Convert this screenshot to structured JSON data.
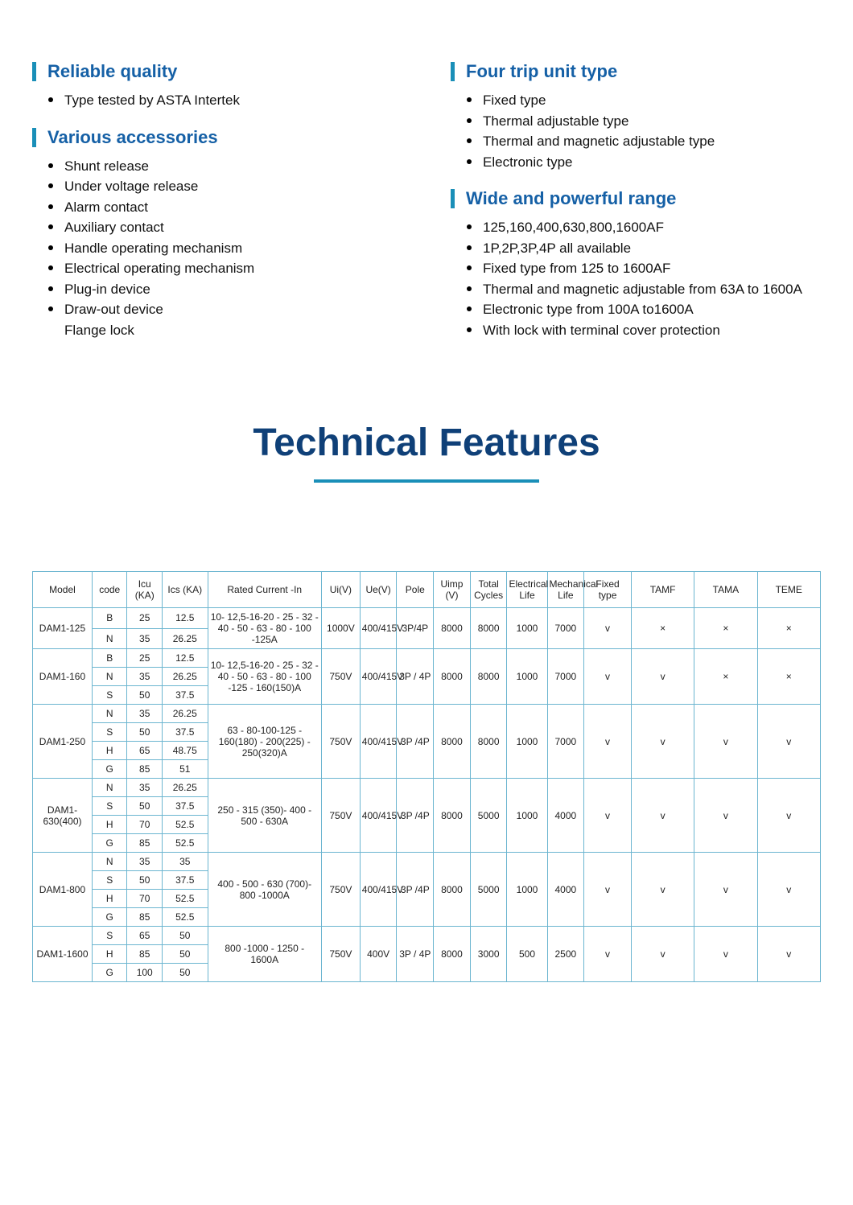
{
  "sections": {
    "reliable": {
      "title": "Reliable quality",
      "items": [
        "Type tested by ASTA Intertek"
      ]
    },
    "accessories": {
      "title": "Various accessories",
      "items": [
        "Shunt release",
        "Under voltage release",
        "Alarm contact",
        "Auxiliary contact",
        "Handle operating mechanism",
        "Electrical operating mechanism",
        "Plug-in device",
        "Draw-out device"
      ],
      "tail": "Flange lock"
    },
    "trip": {
      "title": "Four trip unit type",
      "items": [
        "Fixed type",
        "Thermal adjustable type",
        "Thermal and magnetic adjustable type",
        "Electronic type"
      ]
    },
    "range": {
      "title": "Wide and powerful range",
      "items": [
        "125,160,400,630,800,1600AF",
        "1P,2P,3P,4P all available",
        "Fixed type from 125 to 1600AF",
        "Thermal and magnetic adjustable from 63A to 1600A",
        "Electronic type  from 100A to1600A",
        "With lock with terminal cover protection"
      ]
    }
  },
  "mainTitle": "Technical Features",
  "colors": {
    "accentBar": "#1a8fb8",
    "headingText": "#1560a6",
    "tableBorder": "#6bb5d0",
    "titleText": "#0f4078"
  },
  "table": {
    "columns": [
      "Model",
      "code",
      "Icu (KA)",
      "Ics (KA)",
      "Rated Current -In",
      "Ui(V)",
      "Ue(V)",
      "Pole",
      "Uimp (V)",
      "Total Cycles",
      "Electrical Life",
      "Mechanical Life",
      "Fixed type",
      "TAMF",
      "TAMA",
      "TEME"
    ],
    "groups": [
      {
        "model": "DAM1-125",
        "rows": [
          [
            "B",
            "25",
            "12.5"
          ],
          [
            "N",
            "35",
            "26.25"
          ]
        ],
        "rated": "10- 12,5-16-20 - 25 - 32 - 40  - 50 - 63 - 80 - 100 -125A",
        "ui": "1000V",
        "ue": "400/415V",
        "pole": "3P/4P",
        "uimp": "8000",
        "total": "8000",
        "elec": "1000",
        "mech": "7000",
        "fixed": "v",
        "tamf": "×",
        "tama": "×",
        "teme": "×"
      },
      {
        "model": "DAM1-160",
        "rows": [
          [
            "B",
            "25",
            "12.5"
          ],
          [
            "N",
            "35",
            "26.25"
          ],
          [
            "S",
            "50",
            "37.5"
          ]
        ],
        "rated": "10- 12,5-16-20 - 25 - 32 - 40  - 50 - 63 - 80 - 100 -125 - 160(150)A",
        "ui": "750V",
        "ue": "400/415V",
        "pole": "3P / 4P",
        "uimp": "8000",
        "total": "8000",
        "elec": "1000",
        "mech": "7000",
        "fixed": "v",
        "tamf": "v",
        "tama": "×",
        "teme": "×"
      },
      {
        "model": "DAM1-250",
        "rows": [
          [
            "N",
            "35",
            "26.25"
          ],
          [
            "S",
            "50",
            "37.5"
          ],
          [
            "H",
            "65",
            "48.75"
          ],
          [
            "G",
            "85",
            "51"
          ]
        ],
        "rated": "63 - 80-100-125 - 160(180) -  200(225) - 250(320)A",
        "ui": "750V",
        "ue": "400/415V",
        "pole": "3P /4P",
        "uimp": "8000",
        "total": "8000",
        "elec": "1000",
        "mech": "7000",
        "fixed": "v",
        "tamf": "v",
        "tama": "v",
        "teme": "v"
      },
      {
        "model": "DAM1-630(400)",
        "rows": [
          [
            "N",
            "35",
            "26.25"
          ],
          [
            "S",
            "50",
            "37.5"
          ],
          [
            "H",
            "70",
            "52.5"
          ],
          [
            "G",
            "85",
            "52.5"
          ]
        ],
        "rated": "250 - 315 (350)- 400 - 500  - 630A",
        "ui": "750V",
        "ue": "400/415V",
        "pole": "3P /4P",
        "uimp": "8000",
        "total": "5000",
        "elec": "1000",
        "mech": "4000",
        "fixed": "v",
        "tamf": "v",
        "tama": "v",
        "teme": "v"
      },
      {
        "model": "DAM1-800",
        "rows": [
          [
            "N",
            "35",
            "35"
          ],
          [
            "S",
            "50",
            "37.5"
          ],
          [
            "H",
            "70",
            "52.5"
          ],
          [
            "G",
            "85",
            "52.5"
          ]
        ],
        "rated": "400 - 500 - 630 (700)- 800 -1000A",
        "ui": "750V",
        "ue": "400/415V",
        "pole": "3P /4P",
        "uimp": "8000",
        "total": "5000",
        "elec": "1000",
        "mech": "4000",
        "fixed": "v",
        "tamf": "v",
        "tama": "v",
        "teme": "v"
      },
      {
        "model": "DAM1-1600",
        "rows": [
          [
            "S",
            "65",
            "50"
          ],
          [
            "H",
            "85",
            "50"
          ],
          [
            "G",
            "100",
            "50"
          ]
        ],
        "rated": "800 -1000 - 1250 - 1600A",
        "ui": "750V",
        "ue": "400V",
        "pole": "3P / 4P",
        "uimp": "8000",
        "total": "3000",
        "elec": "500",
        "mech": "2500",
        "fixed": "v",
        "tamf": "v",
        "tama": "v",
        "teme": "v"
      }
    ]
  }
}
